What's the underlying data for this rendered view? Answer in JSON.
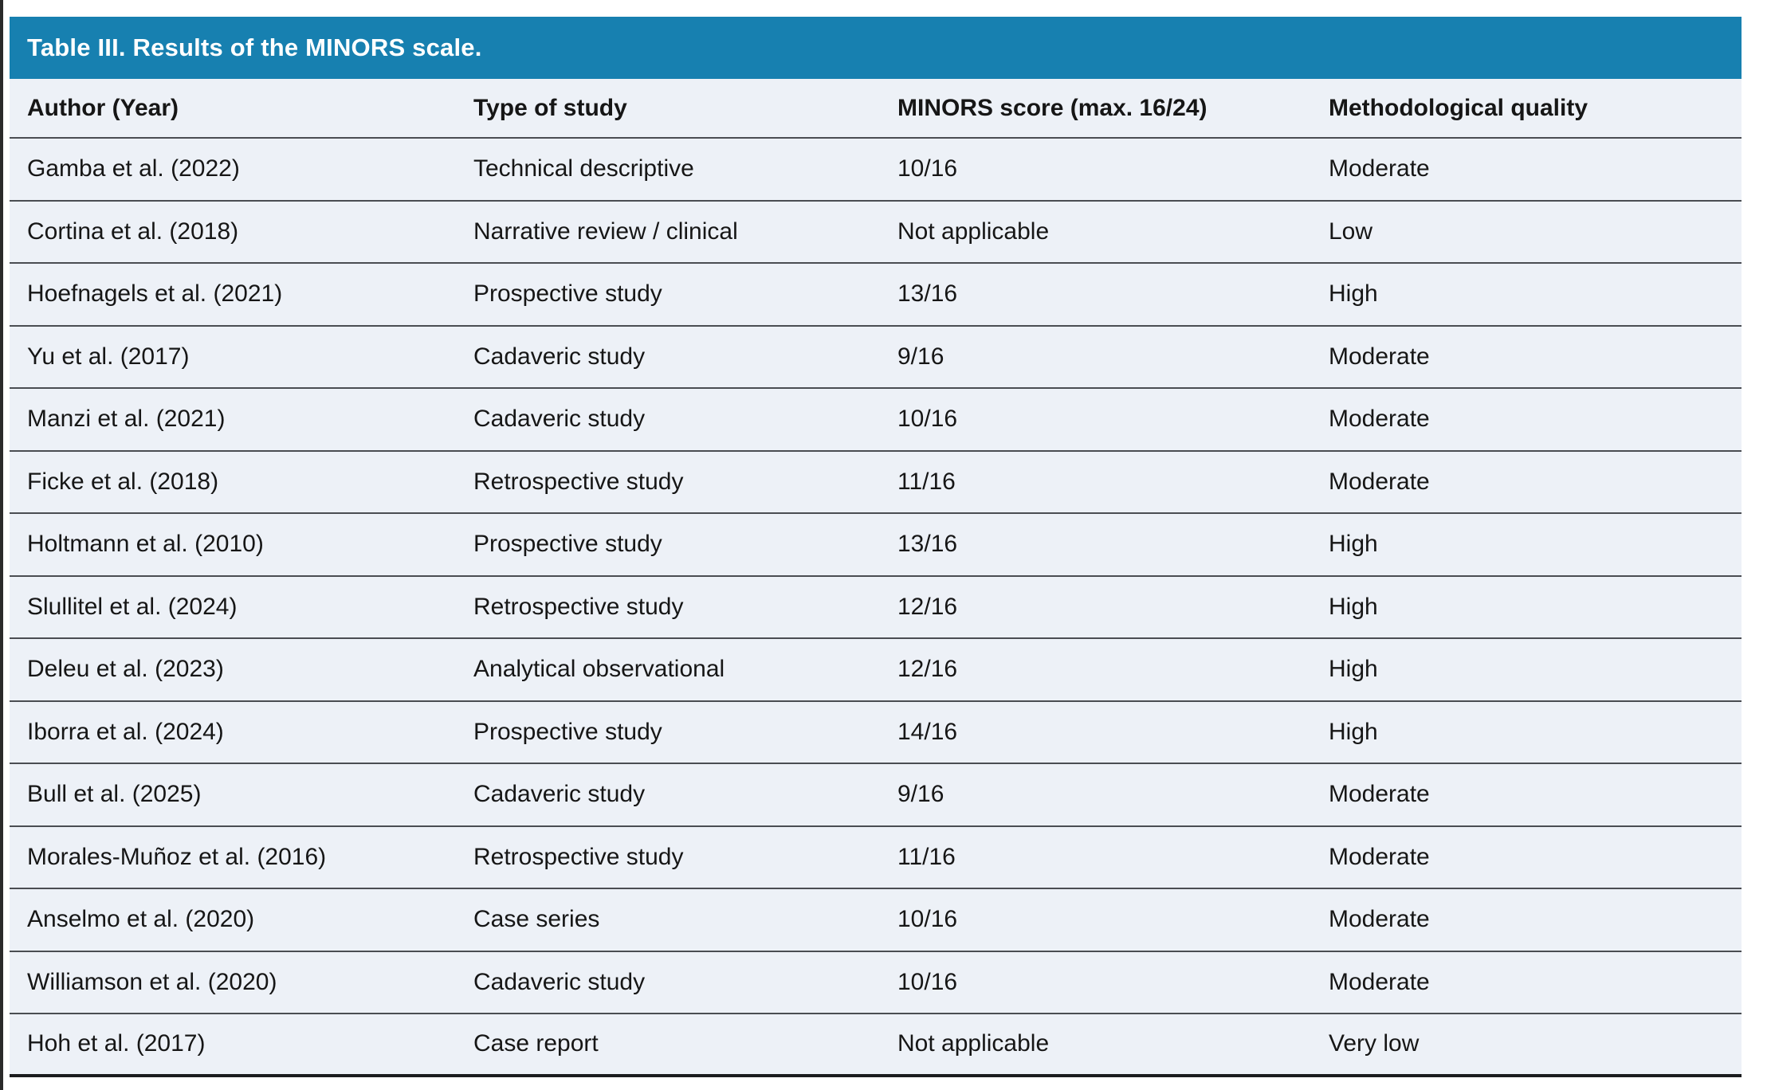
{
  "table": {
    "title": "Table III. Results of the MINORS scale.",
    "columns": [
      "Author (Year)",
      "Type of study",
      "MINORS score (max. 16/24)",
      "Methodological quality"
    ],
    "rows": [
      {
        "author": "Gamba et al. (2022)",
        "study_type": "Technical descriptive",
        "score": "10/16",
        "quality": "Moderate"
      },
      {
        "author": "Cortina et al. (2018)",
        "study_type": "Narrative review / clinical",
        "score": "Not applicable",
        "quality": "Low"
      },
      {
        "author": "Hoefnagels et al. (2021)",
        "study_type": "Prospective study",
        "score": "13/16",
        "quality": "High"
      },
      {
        "author": "Yu et al. (2017)",
        "study_type": "Cadaveric study",
        "score": "9/16",
        "quality": "Moderate"
      },
      {
        "author": "Manzi et al. (2021)",
        "study_type": "Cadaveric study",
        "score": "10/16",
        "quality": "Moderate"
      },
      {
        "author": "Ficke et al. (2018)",
        "study_type": "Retrospective study",
        "score": "11/16",
        "quality": "Moderate"
      },
      {
        "author": "Holtmann et al. (2010)",
        "study_type": "Prospective study",
        "score": "13/16",
        "quality": "High"
      },
      {
        "author": "Slullitel et al. (2024)",
        "study_type": "Retrospective study",
        "score": "12/16",
        "quality": "High"
      },
      {
        "author": "Deleu et al. (2023)",
        "study_type": "Analytical observational",
        "score": "12/16",
        "quality": "High"
      },
      {
        "author": "Iborra et al. (2024)",
        "study_type": "Prospective study",
        "score": "14/16",
        "quality": "High"
      },
      {
        "author": "Bull et al. (2025)",
        "study_type": "Cadaveric study",
        "score": "9/16",
        "quality": "Moderate"
      },
      {
        "author": "Morales-Muñoz et al. (2016)",
        "study_type": "Retrospective study",
        "score": "11/16",
        "quality": "Moderate"
      },
      {
        "author": "Anselmo et al. (2020)",
        "study_type": "Case series",
        "score": "10/16",
        "quality": "Moderate"
      },
      {
        "author": "Williamson et al. (2020)",
        "study_type": "Cadaveric study",
        "score": "10/16",
        "quality": "Moderate"
      },
      {
        "author": "Hoh et al. (2017)",
        "study_type": "Case report",
        "score": "Not applicable",
        "quality": "Very low"
      }
    ]
  },
  "colors": {
    "header_bg": "#1780B0",
    "row_bg": "#EDF1F7",
    "divider": "#4A4D52",
    "strong_border": "#1B1C1E",
    "text": "#161616",
    "title_text": "#FFFFFF",
    "page_edge": "#2A2A2A"
  }
}
